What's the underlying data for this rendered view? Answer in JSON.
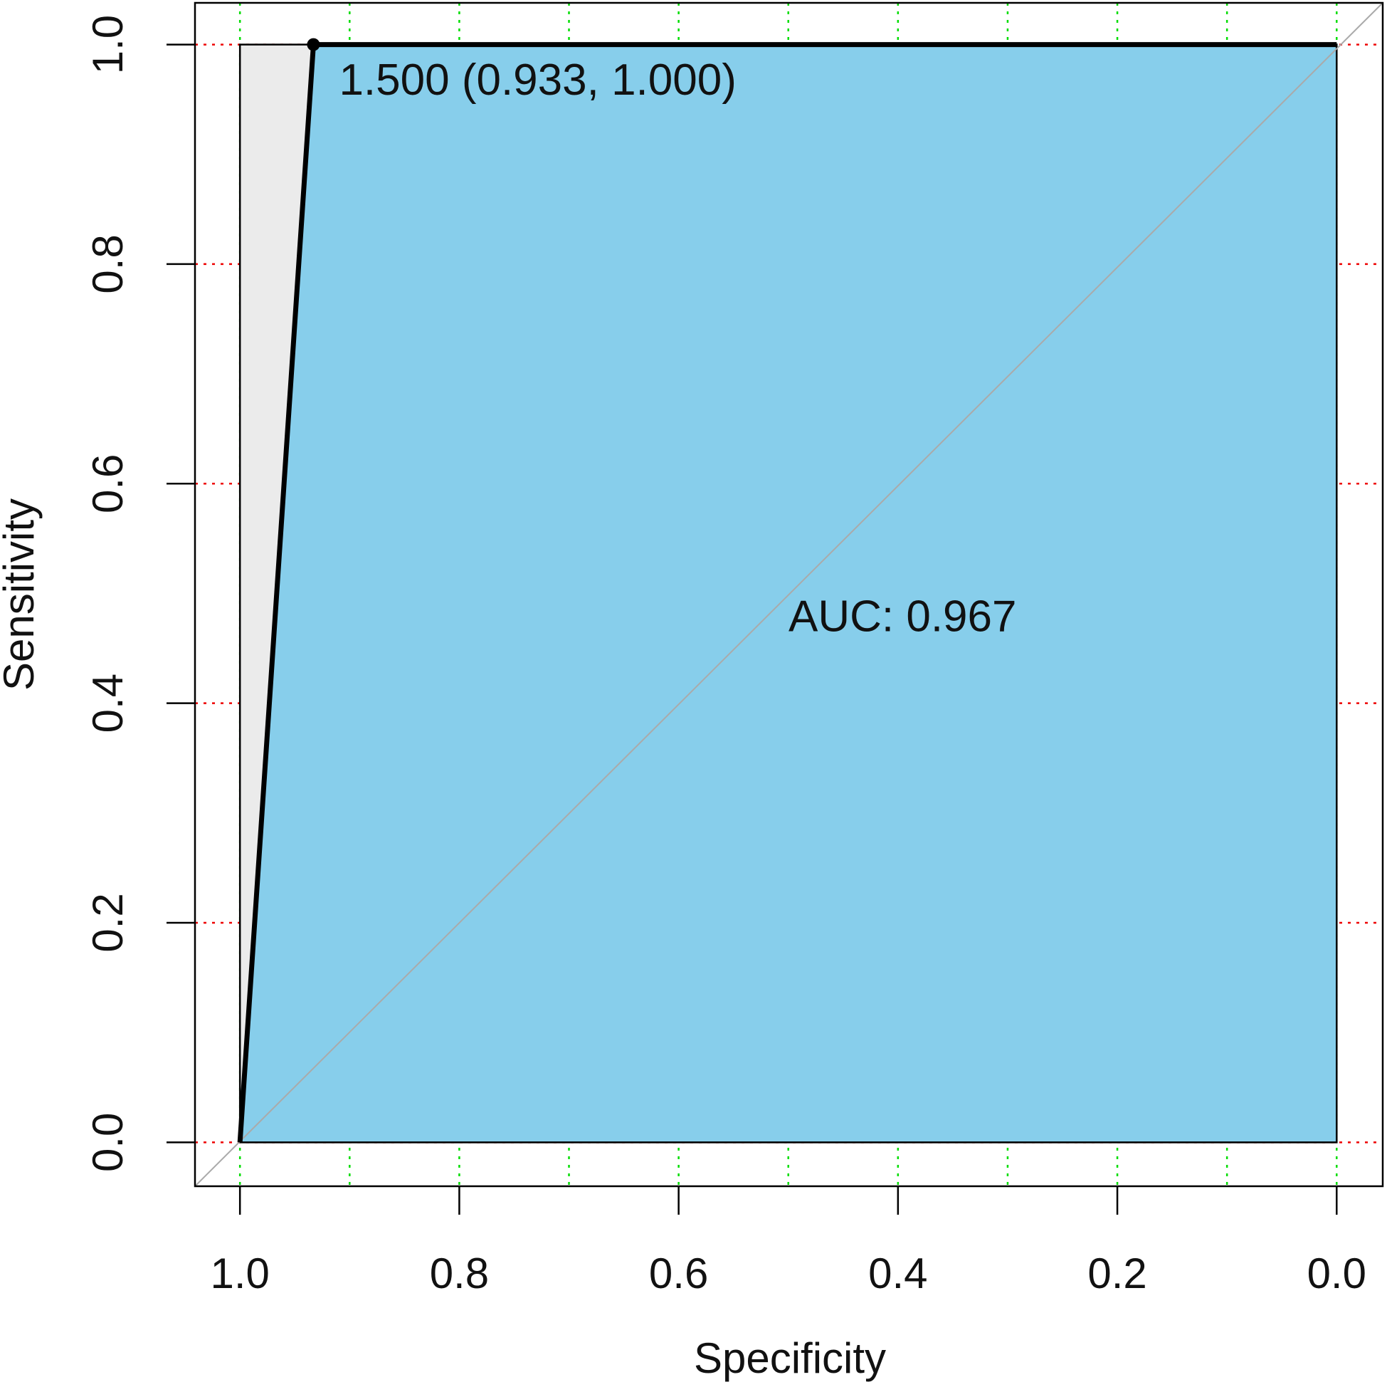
{
  "chart_data": {
    "type": "roc",
    "xlabel": "Specificity",
    "ylabel": "Sensitivity",
    "x": [
      1.0,
      0.933,
      0.0
    ],
    "series": [
      {
        "values": [
          0.0,
          1.0,
          1.0
        ],
        "color": "#000000"
      }
    ],
    "auc_fill": "#87CEEB",
    "background": "#EBEBEB",
    "threshold": {
      "specificity": 0.933,
      "sensitivity": 1.0,
      "label": "1.500 (0.933, 1.000)"
    },
    "auc_label": "AUC: 0.967",
    "xlim": [
      1.041,
      -0.042
    ],
    "ylim": [
      -0.04,
      1.038
    ],
    "xticks": [
      {
        "value": 1.0,
        "label": "1.0"
      },
      0.8,
      0.6,
      0.4,
      0.2,
      {
        "value": 0.0,
        "label": "0.0"
      }
    ],
    "yticks": [
      {
        "value": 0.0,
        "label": "0.0"
      },
      0.2,
      0.4,
      0.6,
      0.8,
      {
        "value": 1.0,
        "label": "1.0"
      }
    ],
    "xgrid": [
      1.0,
      0.9,
      0.8,
      0.7,
      0.6,
      0.5,
      0.4,
      0.3,
      0.2,
      0.1,
      0.0
    ],
    "xgrid_color": "#00DD00",
    "ygrid_color": "#EE0000",
    "grid": true
  }
}
